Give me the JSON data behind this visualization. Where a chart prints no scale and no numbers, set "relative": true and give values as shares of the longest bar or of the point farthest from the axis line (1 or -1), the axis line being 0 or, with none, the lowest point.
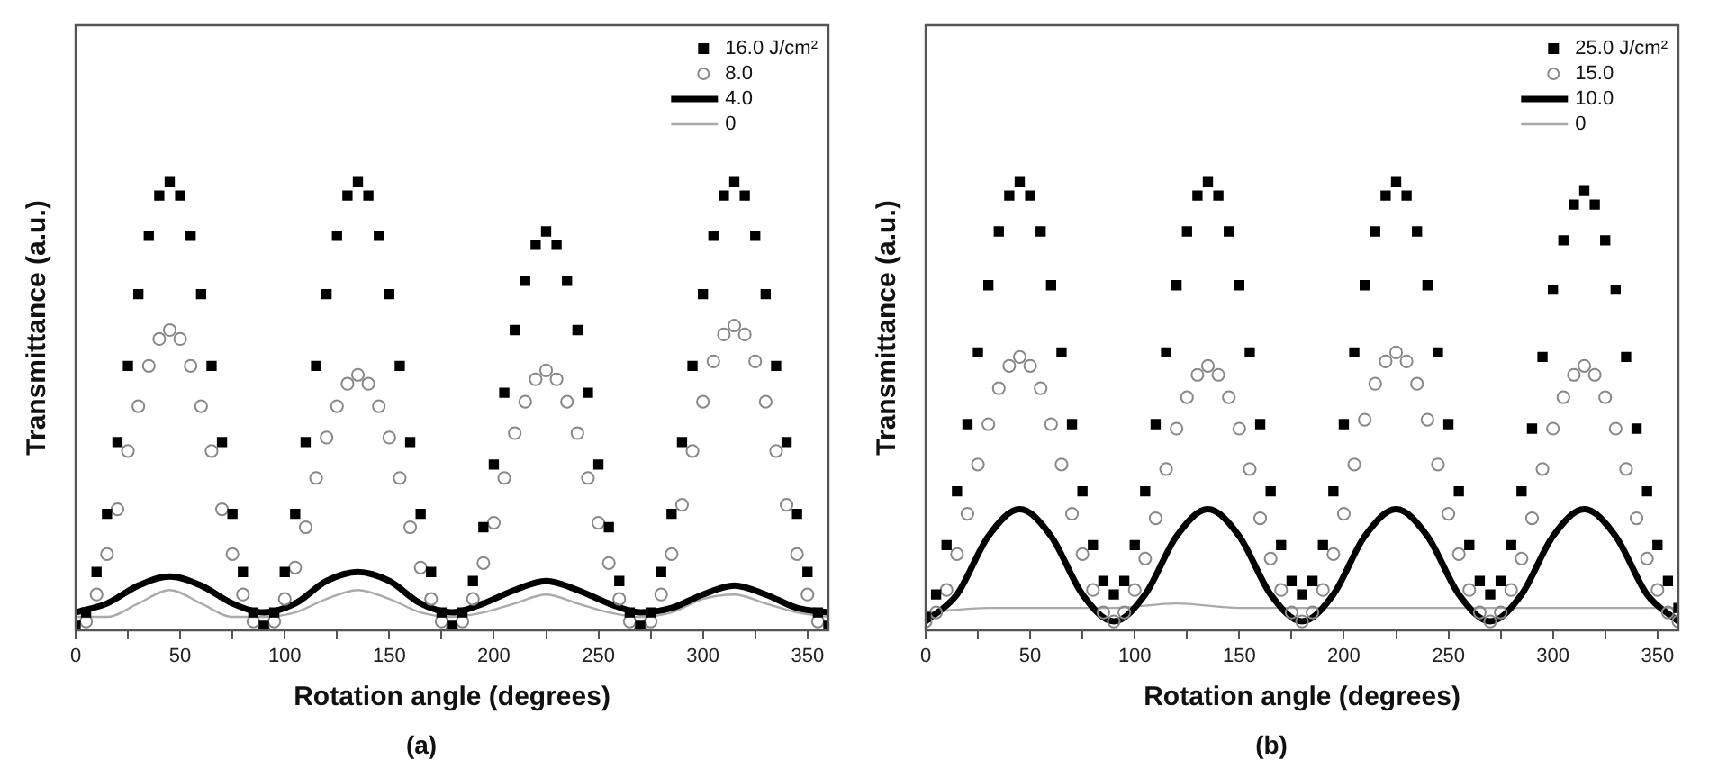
{
  "chart_data": [
    {
      "type": "line",
      "title": "(a)",
      "xlabel": "Rotation angle (degrees)",
      "ylabel": "Transmittance (a.u.)",
      "relative": true,
      "legend": "top right",
      "grid": false,
      "xlim": [
        0,
        360
      ],
      "xticks": [
        0,
        {
          "value": 25,
          "label": null
        },
        50,
        {
          "value": 75,
          "label": null
        },
        100,
        {
          "value": 125,
          "label": null
        },
        150,
        {
          "value": 175,
          "label": null
        },
        200,
        {
          "value": 225,
          "label": null
        },
        250,
        {
          "value": 275,
          "label": null
        },
        300,
        {
          "value": 325,
          "label": null
        },
        350
      ],
      "series": [
        {
          "name": "16.0 J/cm²",
          "type": "scatter",
          "marker": "square",
          "color": "#000000",
          "x": [
            0,
            5,
            10,
            15,
            20,
            25,
            30,
            35,
            40,
            45,
            50,
            55,
            60,
            65,
            70,
            75,
            80,
            85,
            90,
            95,
            100,
            105,
            110,
            115,
            120,
            125,
            130,
            135,
            140,
            145,
            150,
            155,
            160,
            165,
            170,
            175,
            180,
            185,
            190,
            195,
            200,
            205,
            210,
            215,
            220,
            225,
            230,
            235,
            240,
            245,
            250,
            255,
            260,
            265,
            270,
            275,
            280,
            285,
            290,
            295,
            300,
            305,
            310,
            315,
            320,
            325,
            330,
            335,
            340,
            345,
            350,
            355,
            360
          ],
          "values": [
            0.01,
            0.04,
            0.13,
            0.26,
            0.42,
            0.59,
            0.75,
            0.88,
            0.97,
            1.0,
            0.97,
            0.88,
            0.75,
            0.59,
            0.42,
            0.26,
            0.13,
            0.04,
            0.01,
            0.04,
            0.13,
            0.26,
            0.42,
            0.59,
            0.75,
            0.88,
            0.97,
            1.0,
            0.97,
            0.88,
            0.75,
            0.59,
            0.42,
            0.26,
            0.13,
            0.04,
            0.01,
            0.04,
            0.11,
            0.23,
            0.37,
            0.53,
            0.67,
            0.78,
            0.86,
            0.89,
            0.86,
            0.78,
            0.67,
            0.53,
            0.37,
            0.23,
            0.11,
            0.04,
            0.01,
            0.04,
            0.13,
            0.26,
            0.42,
            0.59,
            0.75,
            0.88,
            0.97,
            1.0,
            0.97,
            0.88,
            0.75,
            0.59,
            0.42,
            0.26,
            0.13,
            0.04,
            0.01
          ]
        },
        {
          "name": "8.0",
          "type": "scatter",
          "marker": "circle",
          "color": "#888888",
          "x": [
            5,
            10,
            15,
            20,
            25,
            30,
            35,
            40,
            45,
            50,
            55,
            60,
            65,
            70,
            75,
            80,
            85,
            90,
            95,
            100,
            105,
            110,
            115,
            120,
            125,
            130,
            135,
            140,
            145,
            150,
            155,
            160,
            165,
            170,
            175,
            180,
            185,
            190,
            195,
            200,
            205,
            210,
            215,
            220,
            225,
            230,
            235,
            240,
            245,
            250,
            255,
            260,
            265,
            270,
            275,
            280,
            285,
            290,
            295,
            300,
            305,
            310,
            315,
            320,
            325,
            330,
            335,
            340,
            345,
            350,
            355
          ],
          "values": [
            0.02,
            0.08,
            0.17,
            0.27,
            0.4,
            0.5,
            0.59,
            0.65,
            0.67,
            0.65,
            0.59,
            0.5,
            0.4,
            0.27,
            0.17,
            0.08,
            0.02,
            0,
            0.02,
            0.07,
            0.14,
            0.23,
            0.34,
            0.43,
            0.5,
            0.55,
            0.57,
            0.55,
            0.5,
            0.43,
            0.34,
            0.23,
            0.14,
            0.07,
            0.02,
            0,
            0.02,
            0.07,
            0.15,
            0.24,
            0.34,
            0.44,
            0.51,
            0.56,
            0.58,
            0.56,
            0.51,
            0.44,
            0.34,
            0.24,
            0.15,
            0.07,
            0.02,
            0,
            0.02,
            0.08,
            0.17,
            0.28,
            0.4,
            0.51,
            0.6,
            0.66,
            0.68,
            0.66,
            0.6,
            0.51,
            0.4,
            0.28,
            0.17,
            0.08,
            0.02
          ]
        },
        {
          "name": "4.0",
          "type": "line",
          "marker": "none",
          "color": "#000000",
          "x": [
            0,
            15,
            30,
            45,
            60,
            75,
            90,
            105,
            120,
            135,
            150,
            165,
            180,
            195,
            210,
            225,
            240,
            255,
            270,
            285,
            300,
            315,
            330,
            345,
            360
          ],
          "values": [
            0.04,
            0.06,
            0.1,
            0.12,
            0.1,
            0.06,
            0.04,
            0.06,
            0.11,
            0.13,
            0.11,
            0.06,
            0.04,
            0.06,
            0.09,
            0.11,
            0.09,
            0.06,
            0.04,
            0.05,
            0.08,
            0.1,
            0.08,
            0.05,
            0.04
          ]
        },
        {
          "name": "0",
          "type": "line",
          "marker": "none",
          "color": "#aaaaaa",
          "x": [
            0,
            15,
            30,
            45,
            60,
            75,
            90,
            105,
            120,
            135,
            150,
            165,
            180,
            195,
            210,
            225,
            240,
            255,
            270,
            285,
            300,
            315,
            330,
            345,
            360
          ],
          "values": [
            0.03,
            0.03,
            0.06,
            0.09,
            0.06,
            0.03,
            0.03,
            0.04,
            0.07,
            0.09,
            0.07,
            0.04,
            0.03,
            0.04,
            0.06,
            0.08,
            0.06,
            0.04,
            0.03,
            0.04,
            0.07,
            0.08,
            0.06,
            0.04,
            0.03
          ]
        }
      ]
    },
    {
      "type": "line",
      "title": "(b)",
      "xlabel": "Rotation angle (degrees)",
      "ylabel": "Transmittance (a.u.)",
      "relative": true,
      "legend": "top right",
      "grid": false,
      "xlim": [
        0,
        360
      ],
      "xticks": [
        0,
        {
          "value": 25,
          "label": null
        },
        50,
        {
          "value": 75,
          "label": null
        },
        100,
        {
          "value": 125,
          "label": null
        },
        150,
        {
          "value": 175,
          "label": null
        },
        200,
        {
          "value": 225,
          "label": null
        },
        250,
        {
          "value": 275,
          "label": null
        },
        300,
        {
          "value": 325,
          "label": null
        },
        350
      ],
      "series": [
        {
          "name": "25.0 J/cm²",
          "type": "scatter",
          "marker": "square",
          "color": "#000000",
          "x": [
            0,
            5,
            10,
            15,
            20,
            25,
            30,
            35,
            40,
            45,
            50,
            55,
            60,
            65,
            70,
            75,
            80,
            85,
            90,
            95,
            100,
            105,
            110,
            115,
            120,
            125,
            130,
            135,
            140,
            145,
            150,
            155,
            160,
            165,
            170,
            175,
            180,
            185,
            190,
            195,
            200,
            205,
            210,
            215,
            220,
            225,
            230,
            235,
            240,
            245,
            250,
            255,
            260,
            265,
            270,
            275,
            280,
            285,
            290,
            295,
            300,
            305,
            310,
            315,
            320,
            325,
            330,
            335,
            340,
            345,
            350,
            355,
            360
          ],
          "values": [
            0.03,
            0.08,
            0.19,
            0.31,
            0.46,
            0.62,
            0.77,
            0.89,
            0.97,
            1.0,
            0.97,
            0.89,
            0.77,
            0.62,
            0.46,
            0.31,
            0.19,
            0.11,
            0.08,
            0.11,
            0.19,
            0.31,
            0.46,
            0.62,
            0.77,
            0.89,
            0.97,
            1.0,
            0.97,
            0.89,
            0.77,
            0.62,
            0.46,
            0.31,
            0.19,
            0.11,
            0.08,
            0.11,
            0.19,
            0.31,
            0.46,
            0.62,
            0.77,
            0.89,
            0.97,
            1.0,
            0.97,
            0.89,
            0.77,
            0.62,
            0.46,
            0.31,
            0.19,
            0.11,
            0.08,
            0.11,
            0.19,
            0.31,
            0.45,
            0.61,
            0.76,
            0.87,
            0.95,
            0.98,
            0.95,
            0.87,
            0.76,
            0.61,
            0.45,
            0.31,
            0.19,
            0.11,
            0.05
          ]
        },
        {
          "name": "15.0",
          "type": "scatter",
          "marker": "circle",
          "color": "#888888",
          "x": [
            0,
            5,
            10,
            15,
            20,
            25,
            30,
            35,
            40,
            45,
            50,
            55,
            60,
            65,
            70,
            75,
            80,
            85,
            90,
            95,
            100,
            105,
            110,
            115,
            120,
            125,
            130,
            135,
            140,
            145,
            150,
            155,
            160,
            165,
            170,
            175,
            180,
            185,
            190,
            195,
            200,
            205,
            210,
            215,
            220,
            225,
            230,
            235,
            240,
            245,
            250,
            255,
            260,
            265,
            270,
            275,
            280,
            285,
            290,
            295,
            300,
            305,
            310,
            315,
            320,
            325,
            330,
            335,
            340,
            345,
            350,
            355,
            360
          ],
          "values": [
            0.02,
            0.04,
            0.09,
            0.17,
            0.26,
            0.37,
            0.46,
            0.54,
            0.59,
            0.61,
            0.59,
            0.54,
            0.46,
            0.37,
            0.26,
            0.17,
            0.09,
            0.04,
            0.02,
            0.04,
            0.09,
            0.16,
            0.25,
            0.36,
            0.45,
            0.52,
            0.57,
            0.59,
            0.57,
            0.52,
            0.45,
            0.36,
            0.25,
            0.16,
            0.09,
            0.04,
            0.02,
            0.04,
            0.09,
            0.17,
            0.26,
            0.37,
            0.47,
            0.55,
            0.6,
            0.62,
            0.6,
            0.55,
            0.47,
            0.37,
            0.26,
            0.17,
            0.09,
            0.04,
            0.02,
            0.04,
            0.09,
            0.16,
            0.25,
            0.36,
            0.45,
            0.52,
            0.57,
            0.59,
            0.57,
            0.52,
            0.45,
            0.36,
            0.25,
            0.16,
            0.09,
            0.04,
            0.02
          ]
        },
        {
          "name": "10.0",
          "type": "line",
          "marker": "none",
          "color": "#000000",
          "x": [
            0,
            15,
            30,
            45,
            60,
            75,
            90,
            105,
            120,
            135,
            150,
            165,
            180,
            195,
            210,
            225,
            240,
            255,
            270,
            285,
            300,
            315,
            330,
            345,
            360
          ],
          "values": [
            0.02,
            0.08,
            0.21,
            0.27,
            0.21,
            0.08,
            0.02,
            0.08,
            0.21,
            0.27,
            0.21,
            0.08,
            0.02,
            0.08,
            0.21,
            0.27,
            0.21,
            0.08,
            0.02,
            0.08,
            0.21,
            0.27,
            0.21,
            0.08,
            0.02
          ]
        },
        {
          "name": "0",
          "type": "line",
          "marker": "none",
          "color": "#aaaaaa",
          "x": [
            0,
            30,
            60,
            90,
            120,
            150,
            180,
            210,
            240,
            270,
            300,
            330,
            360
          ],
          "values": [
            0.04,
            0.05,
            0.05,
            0.05,
            0.06,
            0.05,
            0.05,
            0.05,
            0.05,
            0.05,
            0.05,
            0.05,
            0.05
          ]
        }
      ]
    }
  ]
}
